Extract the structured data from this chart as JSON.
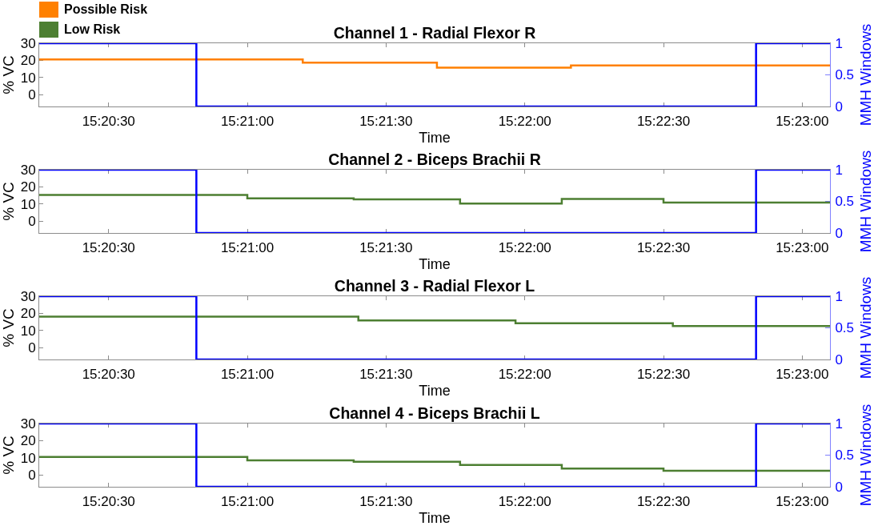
{
  "chart_data": [
    {
      "type": "step",
      "title": "Channel 1 - Radial Flexor R",
      "xlabel": "Time",
      "ylabel": "% VC",
      "y2label": "MMH Windows",
      "legend": "top left",
      "xlim": [
        15.3375,
        15.385
      ],
      "xticks": [
        {
          "value": 15.34167,
          "label": "15:20:30"
        },
        {
          "value": 15.35,
          "label": "15:21:00"
        },
        {
          "value": 15.35833,
          "label": "15:21:30"
        },
        {
          "value": 15.36667,
          "label": "15:22:00"
        },
        {
          "value": 15.375,
          "label": "15:22:30"
        },
        {
          "value": 15.38333,
          "label": "15:23:00"
        }
      ],
      "ylim": [
        -7,
        30
      ],
      "yticks": [
        0,
        10,
        20,
        30
      ],
      "y2lim": [
        0,
        1
      ],
      "y2ticks": [
        0,
        0.5,
        1
      ],
      "series": [
        {
          "name": "Possible Risk",
          "color": "#ff8000",
          "x": [
            15.3375,
            15.35333,
            15.36139,
            15.36944,
            15.385
          ],
          "values": [
            20.5,
            18.6,
            15.7,
            17.0,
            17.0
          ]
        },
        {
          "color": "#0000ff",
          "axis": "y2",
          "x": [
            15.3375,
            15.34694,
            15.38056,
            15.385
          ],
          "values": [
            1,
            0,
            1,
            1
          ]
        }
      ]
    },
    {
      "type": "step",
      "title": "Channel 2 - Biceps Brachii R",
      "xlabel": "Time",
      "ylabel": "% VC",
      "y2label": "MMH Windows",
      "legend": "top left",
      "xlim": [
        15.3375,
        15.385
      ],
      "xticks": [
        {
          "value": 15.34167,
          "label": "15:20:30"
        },
        {
          "value": 15.35,
          "label": "15:21:00"
        },
        {
          "value": 15.35833,
          "label": "15:21:30"
        },
        {
          "value": 15.36667,
          "label": "15:22:00"
        },
        {
          "value": 15.375,
          "label": "15:22:30"
        },
        {
          "value": 15.38333,
          "label": "15:23:00"
        }
      ],
      "ylim": [
        -7,
        30
      ],
      "yticks": [
        0,
        10,
        20,
        30
      ],
      "y2lim": [
        0,
        1
      ],
      "y2ticks": [
        0,
        0.5,
        1
      ],
      "series": [
        {
          "name": "Low Risk",
          "color": "#4d7f32",
          "x": [
            15.3375,
            15.35,
            15.35639,
            15.36278,
            15.36889,
            15.375,
            15.385
          ],
          "values": [
            15.2,
            13.2,
            12.7,
            10.2,
            12.9,
            10.8,
            10.8
          ]
        },
        {
          "color": "#0000ff",
          "axis": "y2",
          "x": [
            15.3375,
            15.34694,
            15.38056,
            15.385
          ],
          "values": [
            1,
            0,
            1,
            1
          ]
        }
      ]
    },
    {
      "type": "step",
      "title": "Channel 3 - Radial Flexor L",
      "xlabel": "Time",
      "ylabel": "% VC",
      "y2label": "MMH Windows",
      "xlim": [
        15.3375,
        15.385
      ],
      "xticks": [
        {
          "value": 15.34167,
          "label": "15:20:30"
        },
        {
          "value": 15.35,
          "label": "15:21:00"
        },
        {
          "value": 15.35833,
          "label": "15:21:30"
        },
        {
          "value": 15.36667,
          "label": "15:22:00"
        },
        {
          "value": 15.375,
          "label": "15:22:30"
        },
        {
          "value": 15.38333,
          "label": "15:23:00"
        }
      ],
      "ylim": [
        -7,
        30
      ],
      "yticks": [
        0,
        10,
        20,
        30
      ],
      "y2lim": [
        0,
        1
      ],
      "y2ticks": [
        0,
        0.5,
        1
      ],
      "series": [
        {
          "color": "#4d7f32",
          "x": [
            15.3375,
            15.35667,
            15.36611,
            15.37556,
            15.385
          ],
          "values": [
            18.1,
            15.8,
            14.2,
            12.5,
            12.5
          ]
        },
        {
          "color": "#0000ff",
          "axis": "y2",
          "x": [
            15.3375,
            15.34694,
            15.38056,
            15.385
          ],
          "values": [
            1,
            0,
            1,
            1
          ]
        }
      ]
    },
    {
      "type": "step",
      "title": "Channel 4 - Biceps Brachii L",
      "xlabel": "Time",
      "ylabel": "% VC",
      "y2label": "MMH Windows",
      "xlim": [
        15.3375,
        15.385
      ],
      "xticks": [
        {
          "value": 15.34167,
          "label": "15:20:30"
        },
        {
          "value": 15.35,
          "label": "15:21:00"
        },
        {
          "value": 15.35833,
          "label": "15:21:30"
        },
        {
          "value": 15.36667,
          "label": "15:22:00"
        },
        {
          "value": 15.375,
          "label": "15:22:30"
        },
        {
          "value": 15.38333,
          "label": "15:23:00"
        }
      ],
      "ylim": [
        -7,
        30
      ],
      "yticks": [
        0,
        10,
        20,
        30
      ],
      "y2lim": [
        0,
        1
      ],
      "y2ticks": [
        0,
        0.5,
        1
      ],
      "series": [
        {
          "color": "#4d7f32",
          "x": [
            15.3375,
            15.35,
            15.35639,
            15.36278,
            15.36889,
            15.375,
            15.385
          ],
          "values": [
            10.5,
            8.4,
            7.6,
            5.8,
            3.6,
            2.4,
            2.4
          ]
        },
        {
          "color": "#0000ff",
          "axis": "y2",
          "x": [
            15.3375,
            15.34694,
            15.38056,
            15.385
          ],
          "values": [
            1,
            0,
            1,
            1
          ]
        }
      ]
    }
  ]
}
